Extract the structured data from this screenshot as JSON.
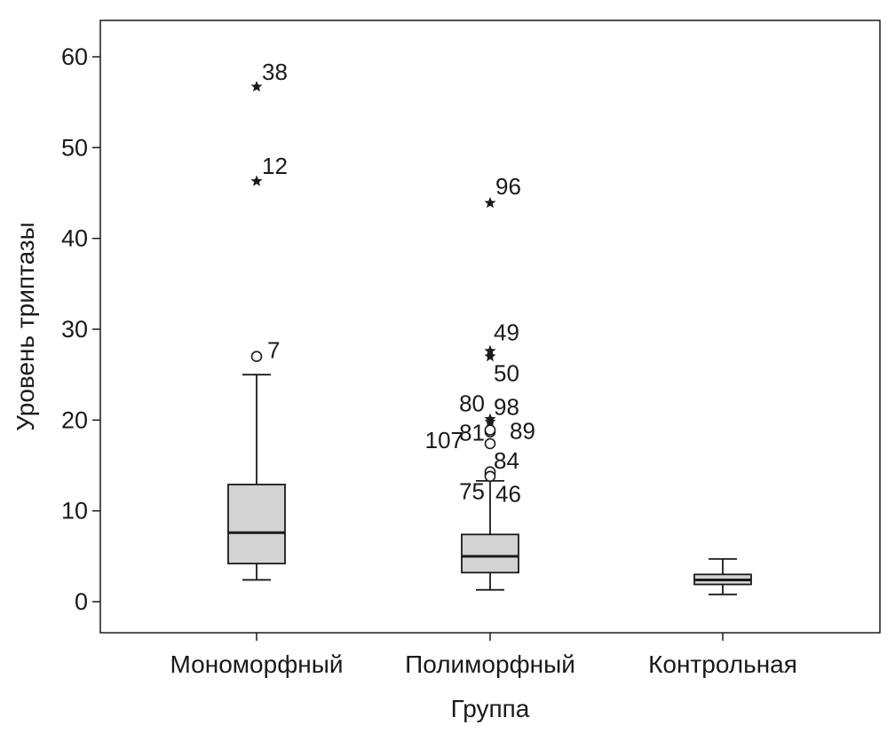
{
  "chart_data": {
    "type": "boxplot",
    "xlabel": "Группа",
    "ylabel": "Уровень триптазы",
    "ylim": [
      -3.5,
      64.5
    ],
    "yticks": [
      0,
      10,
      20,
      30,
      40,
      50,
      60
    ],
    "grid": false,
    "categories": [
      "Мономорфный",
      "Полиморфный",
      "Контрольная"
    ],
    "boxes": [
      {
        "category": "Мономорфный",
        "whisker_low": 2.4,
        "q1": 4.2,
        "median": 7.6,
        "q3": 12.9,
        "whisker_high": 25.0,
        "outliers": [
          {
            "label": "7",
            "value": 27.0,
            "marker": "circle"
          },
          {
            "label": "12",
            "value": 46.3,
            "marker": "star"
          },
          {
            "label": "38",
            "value": 56.7,
            "marker": "star"
          }
        ]
      },
      {
        "category": "Полиморфный",
        "whisker_low": 1.3,
        "q1": 3.2,
        "median": 5.0,
        "q3": 7.4,
        "whisker_high": 13.3,
        "outliers": [
          {
            "label": "46",
            "value": 14.0,
            "marker": "circle"
          },
          {
            "label": "75",
            "value": 14.3,
            "marker": "circle"
          },
          {
            "label": "84",
            "value": 13.8,
            "marker": "circle"
          },
          {
            "label": "107",
            "value": 17.4,
            "marker": "circle"
          },
          {
            "label": "81",
            "value": 18.7,
            "marker": "circle"
          },
          {
            "label": "89",
            "value": 18.9,
            "marker": "circle"
          },
          {
            "label": "80",
            "value": 19.8,
            "marker": "star"
          },
          {
            "label": "98",
            "value": 20.1,
            "marker": "star"
          },
          {
            "label": "50",
            "value": 27.0,
            "marker": "star"
          },
          {
            "label": "49",
            "value": 27.6,
            "marker": "star"
          },
          {
            "label": "96",
            "value": 43.9,
            "marker": "star"
          }
        ]
      },
      {
        "category": "Контрольная",
        "whisker_low": 0.8,
        "q1": 1.9,
        "median": 2.4,
        "q3": 3.0,
        "whisker_high": 4.7,
        "outliers": []
      }
    ],
    "colors": {
      "box_fill": "#d3d3d3",
      "stroke": "#1a1a1a",
      "background": "#ffffff"
    }
  }
}
